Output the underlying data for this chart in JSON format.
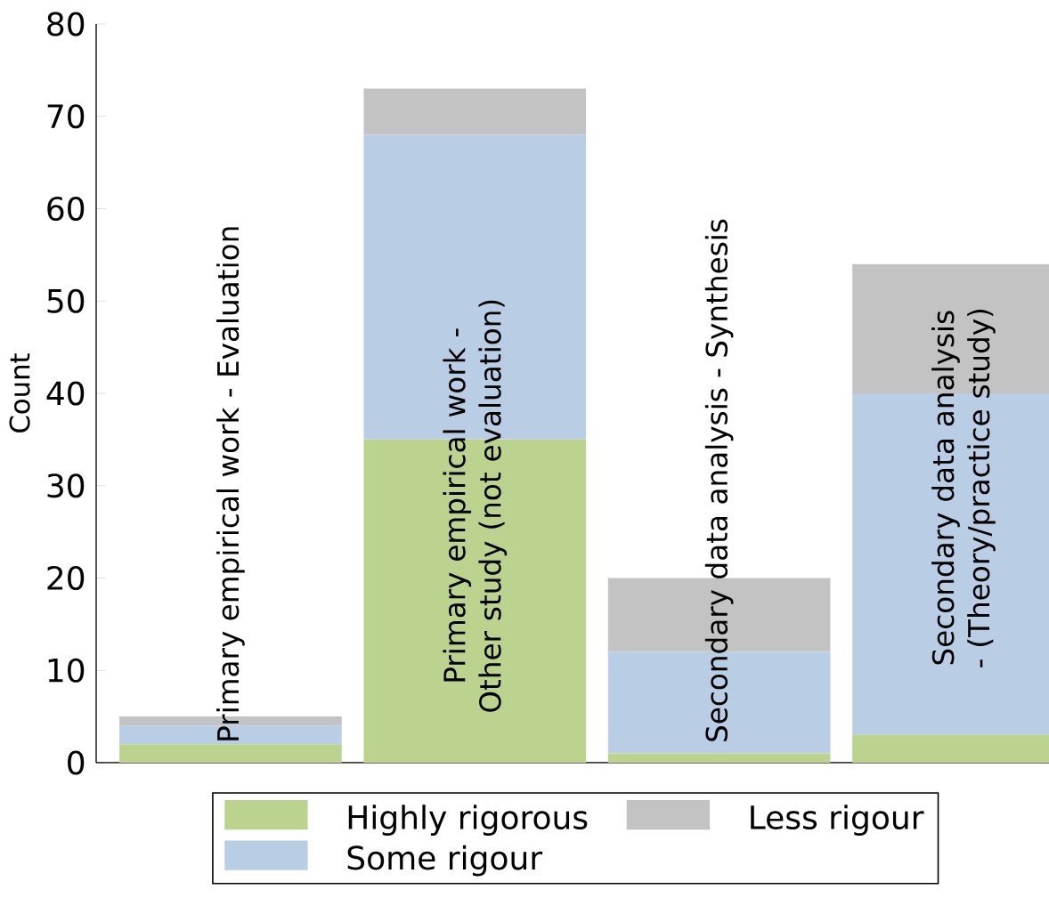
{
  "chart_data": {
    "type": "bar",
    "stacked": true,
    "ylabel": "Count",
    "categories": [
      "Primary empirical work - Evaluation",
      "Primary empirical work - Other study (not evaluation)",
      "Secondary data analysis - Synthesis",
      "Secondary data analysis - (Theory/practice study)"
    ],
    "series": [
      {
        "name": "Highly rigorous",
        "color": "#bcd38f",
        "values": [
          2,
          35,
          1,
          3
        ]
      },
      {
        "name": "Some rigour",
        "color": "#b9cde5",
        "values": [
          2,
          33,
          11,
          37
        ]
      },
      {
        "name": "Less rigour",
        "color": "#c3c3c3",
        "values": [
          1,
          5,
          8,
          14
        ]
      }
    ],
    "ylim": [
      0,
      80
    ],
    "yticks": [
      0,
      10,
      20,
      30,
      40,
      50,
      60,
      70,
      80
    ],
    "legend": "bottom"
  }
}
